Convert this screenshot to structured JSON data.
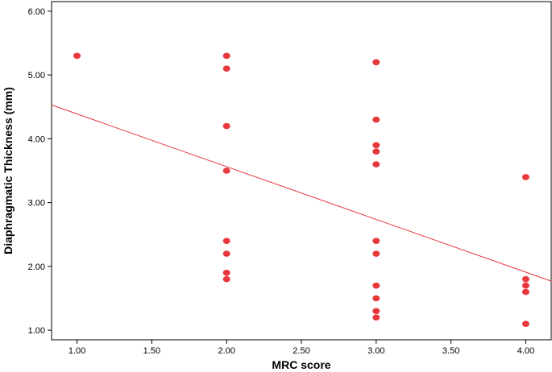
{
  "chart_data": {
    "type": "scatter",
    "title": "",
    "xlabel": "MRC score",
    "ylabel": "Diaphragmatic Thickness (mm)",
    "xlim": [
      0.83,
      4.17
    ],
    "ylim": [
      0.85,
      6.15
    ],
    "xticks": [
      "1.00",
      "1.50",
      "2.00",
      "2.50",
      "3.00",
      "3.50",
      "4.00"
    ],
    "yticks": [
      "1.00",
      "2.00",
      "3.00",
      "4.00",
      "5.00",
      "6.00"
    ],
    "grid": false,
    "points": [
      {
        "x": 1,
        "y": 5.3
      },
      {
        "x": 2,
        "y": 5.3
      },
      {
        "x": 2,
        "y": 5.1
      },
      {
        "x": 2,
        "y": 4.2
      },
      {
        "x": 2,
        "y": 3.5
      },
      {
        "x": 2,
        "y": 2.4
      },
      {
        "x": 2,
        "y": 2.2
      },
      {
        "x": 2,
        "y": 1.9
      },
      {
        "x": 2,
        "y": 1.8
      },
      {
        "x": 3,
        "y": 5.2
      },
      {
        "x": 3,
        "y": 4.3
      },
      {
        "x": 3,
        "y": 3.9
      },
      {
        "x": 3,
        "y": 3.8
      },
      {
        "x": 3,
        "y": 3.6
      },
      {
        "x": 3,
        "y": 2.4
      },
      {
        "x": 3,
        "y": 2.2
      },
      {
        "x": 3,
        "y": 1.7
      },
      {
        "x": 3,
        "y": 1.5
      },
      {
        "x": 3,
        "y": 1.3
      },
      {
        "x": 3,
        "y": 1.2
      },
      {
        "x": 4,
        "y": 3.4
      },
      {
        "x": 4,
        "y": 1.8
      },
      {
        "x": 4,
        "y": 1.7
      },
      {
        "x": 4,
        "y": 1.6
      },
      {
        "x": 4,
        "y": 1.1
      }
    ],
    "fit_line": {
      "x": [
        0.83,
        4.17
      ],
      "y": [
        4.53,
        1.77
      ]
    },
    "point_color": "#e8383d",
    "line_color": "#e8383d"
  }
}
